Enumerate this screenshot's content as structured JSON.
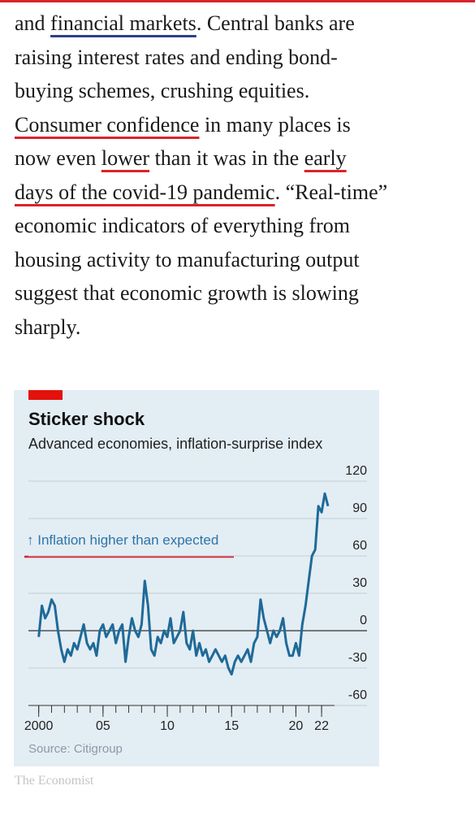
{
  "paragraph": {
    "lines": [
      [
        {
          "text": "and "
        },
        {
          "text": "financial markets",
          "underline": "#2b3f8f"
        },
        {
          "text": ". Central banks are"
        }
      ],
      [
        {
          "text": "raising interest rates and ending bond-"
        }
      ],
      [
        {
          "text": "buying schemes, crushing equities."
        }
      ],
      [
        {
          "text": "Consumer confidence",
          "underline": "#d9242b"
        },
        {
          "text": " in many places is"
        }
      ],
      [
        {
          "text": "now even "
        },
        {
          "text": "lower",
          "underline": "#d9242b"
        },
        {
          "text": " than it was in the "
        },
        {
          "text": "early",
          "underline": "#d9242b"
        }
      ],
      [
        {
          "text": "days of the covid-19 pandemic",
          "underline": "#d9242b"
        },
        {
          "text": ". “Real-time”"
        }
      ],
      [
        {
          "text": "economic indicators of everything from"
        }
      ],
      [
        {
          "text": "housing activity to manufacturing output"
        }
      ],
      [
        {
          "text": "suggest that economic growth is slowing"
        }
      ],
      [
        {
          "text": "sharply."
        }
      ]
    ]
  },
  "chart_data": {
    "type": "line",
    "title": "Sticker shock",
    "subtitle": "Advanced economies, inflation-surprise index",
    "annotation": {
      "text": "↑ Inflation higher than expected",
      "underline": "#d9242b"
    },
    "source": "Source: Citigroup",
    "credit": "The Economist",
    "x": [
      2000.0,
      2000.25,
      2000.5,
      2000.75,
      2001.0,
      2001.25,
      2001.5,
      2001.75,
      2002.0,
      2002.25,
      2002.5,
      2002.75,
      2003.0,
      2003.25,
      2003.5,
      2003.75,
      2004.0,
      2004.25,
      2004.5,
      2004.75,
      2005.0,
      2005.25,
      2005.5,
      2005.75,
      2006.0,
      2006.25,
      2006.5,
      2006.75,
      2007.0,
      2007.25,
      2007.5,
      2007.75,
      2008.0,
      2008.25,
      2008.5,
      2008.75,
      2009.0,
      2009.25,
      2009.5,
      2009.75,
      2010.0,
      2010.25,
      2010.5,
      2010.75,
      2011.0,
      2011.25,
      2011.5,
      2011.75,
      2012.0,
      2012.25,
      2012.5,
      2012.75,
      2013.0,
      2013.25,
      2013.5,
      2013.75,
      2014.0,
      2014.25,
      2014.5,
      2014.75,
      2015.0,
      2015.25,
      2015.5,
      2015.75,
      2016.0,
      2016.25,
      2016.5,
      2016.75,
      2017.0,
      2017.25,
      2017.5,
      2017.75,
      2018.0,
      2018.25,
      2018.5,
      2018.75,
      2019.0,
      2019.25,
      2019.5,
      2019.75,
      2020.0,
      2020.25,
      2020.5,
      2020.75,
      2021.0,
      2021.25,
      2021.5,
      2021.75,
      2022.0,
      2022.25,
      2022.5
    ],
    "series": [
      {
        "name": "Inflation-surprise index",
        "color": "#1f6a98",
        "values": [
          -5,
          20,
          10,
          15,
          25,
          20,
          0,
          -15,
          -25,
          -15,
          -20,
          -10,
          -15,
          -5,
          5,
          -10,
          -15,
          -10,
          -20,
          0,
          5,
          -5,
          0,
          5,
          -10,
          0,
          5,
          -25,
          -5,
          10,
          0,
          -5,
          5,
          40,
          20,
          -15,
          -20,
          -5,
          -10,
          0,
          -5,
          10,
          -10,
          -5,
          0,
          15,
          -10,
          -15,
          0,
          -20,
          -10,
          -20,
          -15,
          -25,
          -20,
          -15,
          -20,
          -25,
          -20,
          -30,
          -35,
          -25,
          -20,
          -25,
          -20,
          -15,
          -25,
          -10,
          -5,
          25,
          10,
          0,
          -10,
          0,
          -5,
          0,
          10,
          -10,
          -20,
          -20,
          -10,
          -20,
          5,
          20,
          40,
          60,
          65,
          100,
          95,
          110,
          100
        ]
      }
    ],
    "xlim": [
      1999.2,
      2022.5
    ],
    "ylim": [
      -60,
      120
    ],
    "yticks": [
      -60,
      -30,
      0,
      30,
      60,
      90,
      120
    ],
    "xticks": [
      2000,
      {
        "value": 2005,
        "label": "05"
      },
      {
        "value": 2010,
        "label": "10"
      },
      {
        "value": 2015,
        "label": "15"
      },
      {
        "value": 2020,
        "label": "20"
      },
      {
        "value": 2022,
        "label": "22"
      }
    ],
    "xminor_ticks": [
      2000,
      2001,
      2002,
      2003,
      2004,
      2005,
      2006,
      2007,
      2008,
      2009,
      2010,
      2011,
      2012,
      2013,
      2014,
      2015,
      2016,
      2017,
      2018,
      2019,
      2020,
      2021,
      2022
    ],
    "grid": true
  }
}
